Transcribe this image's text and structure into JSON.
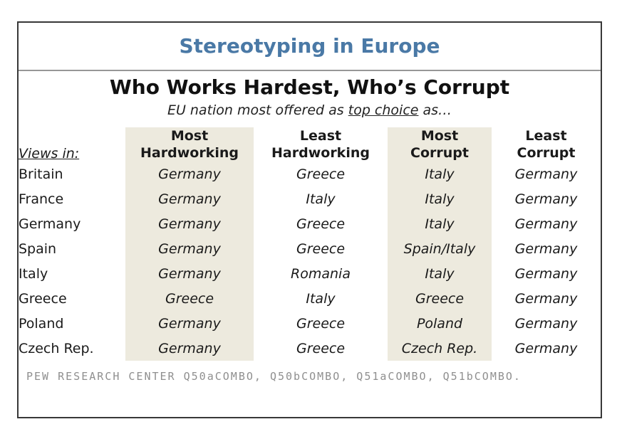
{
  "colors": {
    "title_blue": "#4a79a6",
    "highlight_beige": "#edeade",
    "card_border": "#383838",
    "divider_gray": "#979797",
    "source_gray": "#8f8f8f",
    "text_dark": "#1a1a1a"
  },
  "chart_data": {
    "type": "table",
    "title": "Stereotyping in Europe",
    "subtitle": "Who Works Hardest, Who’s Corrupt",
    "tagline": {
      "prefix": "EU nation most offered as ",
      "underlined": "top choice",
      "suffix": " as…"
    },
    "row_header": "Views in:",
    "column_headers": [
      {
        "line1": "Most",
        "line2": "Hardworking",
        "highlighted": true
      },
      {
        "line1": "Least",
        "line2": "Hardworking",
        "highlighted": false
      },
      {
        "line1": "Most",
        "line2": "Corrupt",
        "highlighted": true
      },
      {
        "line1": "Least",
        "line2": "Corrupt",
        "highlighted": false
      }
    ],
    "rows": [
      {
        "country": "Britain",
        "values": [
          "Germany",
          "Greece",
          "Italy",
          "Germany"
        ]
      },
      {
        "country": "France",
        "values": [
          "Germany",
          "Italy",
          "Italy",
          "Germany"
        ]
      },
      {
        "country": "Germany",
        "values": [
          "Germany",
          "Greece",
          "Italy",
          "Germany"
        ]
      },
      {
        "country": "Spain",
        "values": [
          "Germany",
          "Greece",
          "Spain/Italy",
          "Germany"
        ]
      },
      {
        "country": "Italy",
        "values": [
          "Germany",
          "Romania",
          "Italy",
          "Germany"
        ]
      },
      {
        "country": "Greece",
        "values": [
          "Greece",
          "Italy",
          "Greece",
          "Germany"
        ]
      },
      {
        "country": "Poland",
        "values": [
          "Germany",
          "Greece",
          "Poland",
          "Germany"
        ]
      },
      {
        "country": "Czech Rep.",
        "values": [
          "Germany",
          "Greece",
          "Czech Rep.",
          "Germany"
        ]
      }
    ],
    "source": "PEW RESEARCH CENTER Q50aCOMBO, Q50bCOMBO, Q51aCOMBO, Q51bCOMBO."
  }
}
